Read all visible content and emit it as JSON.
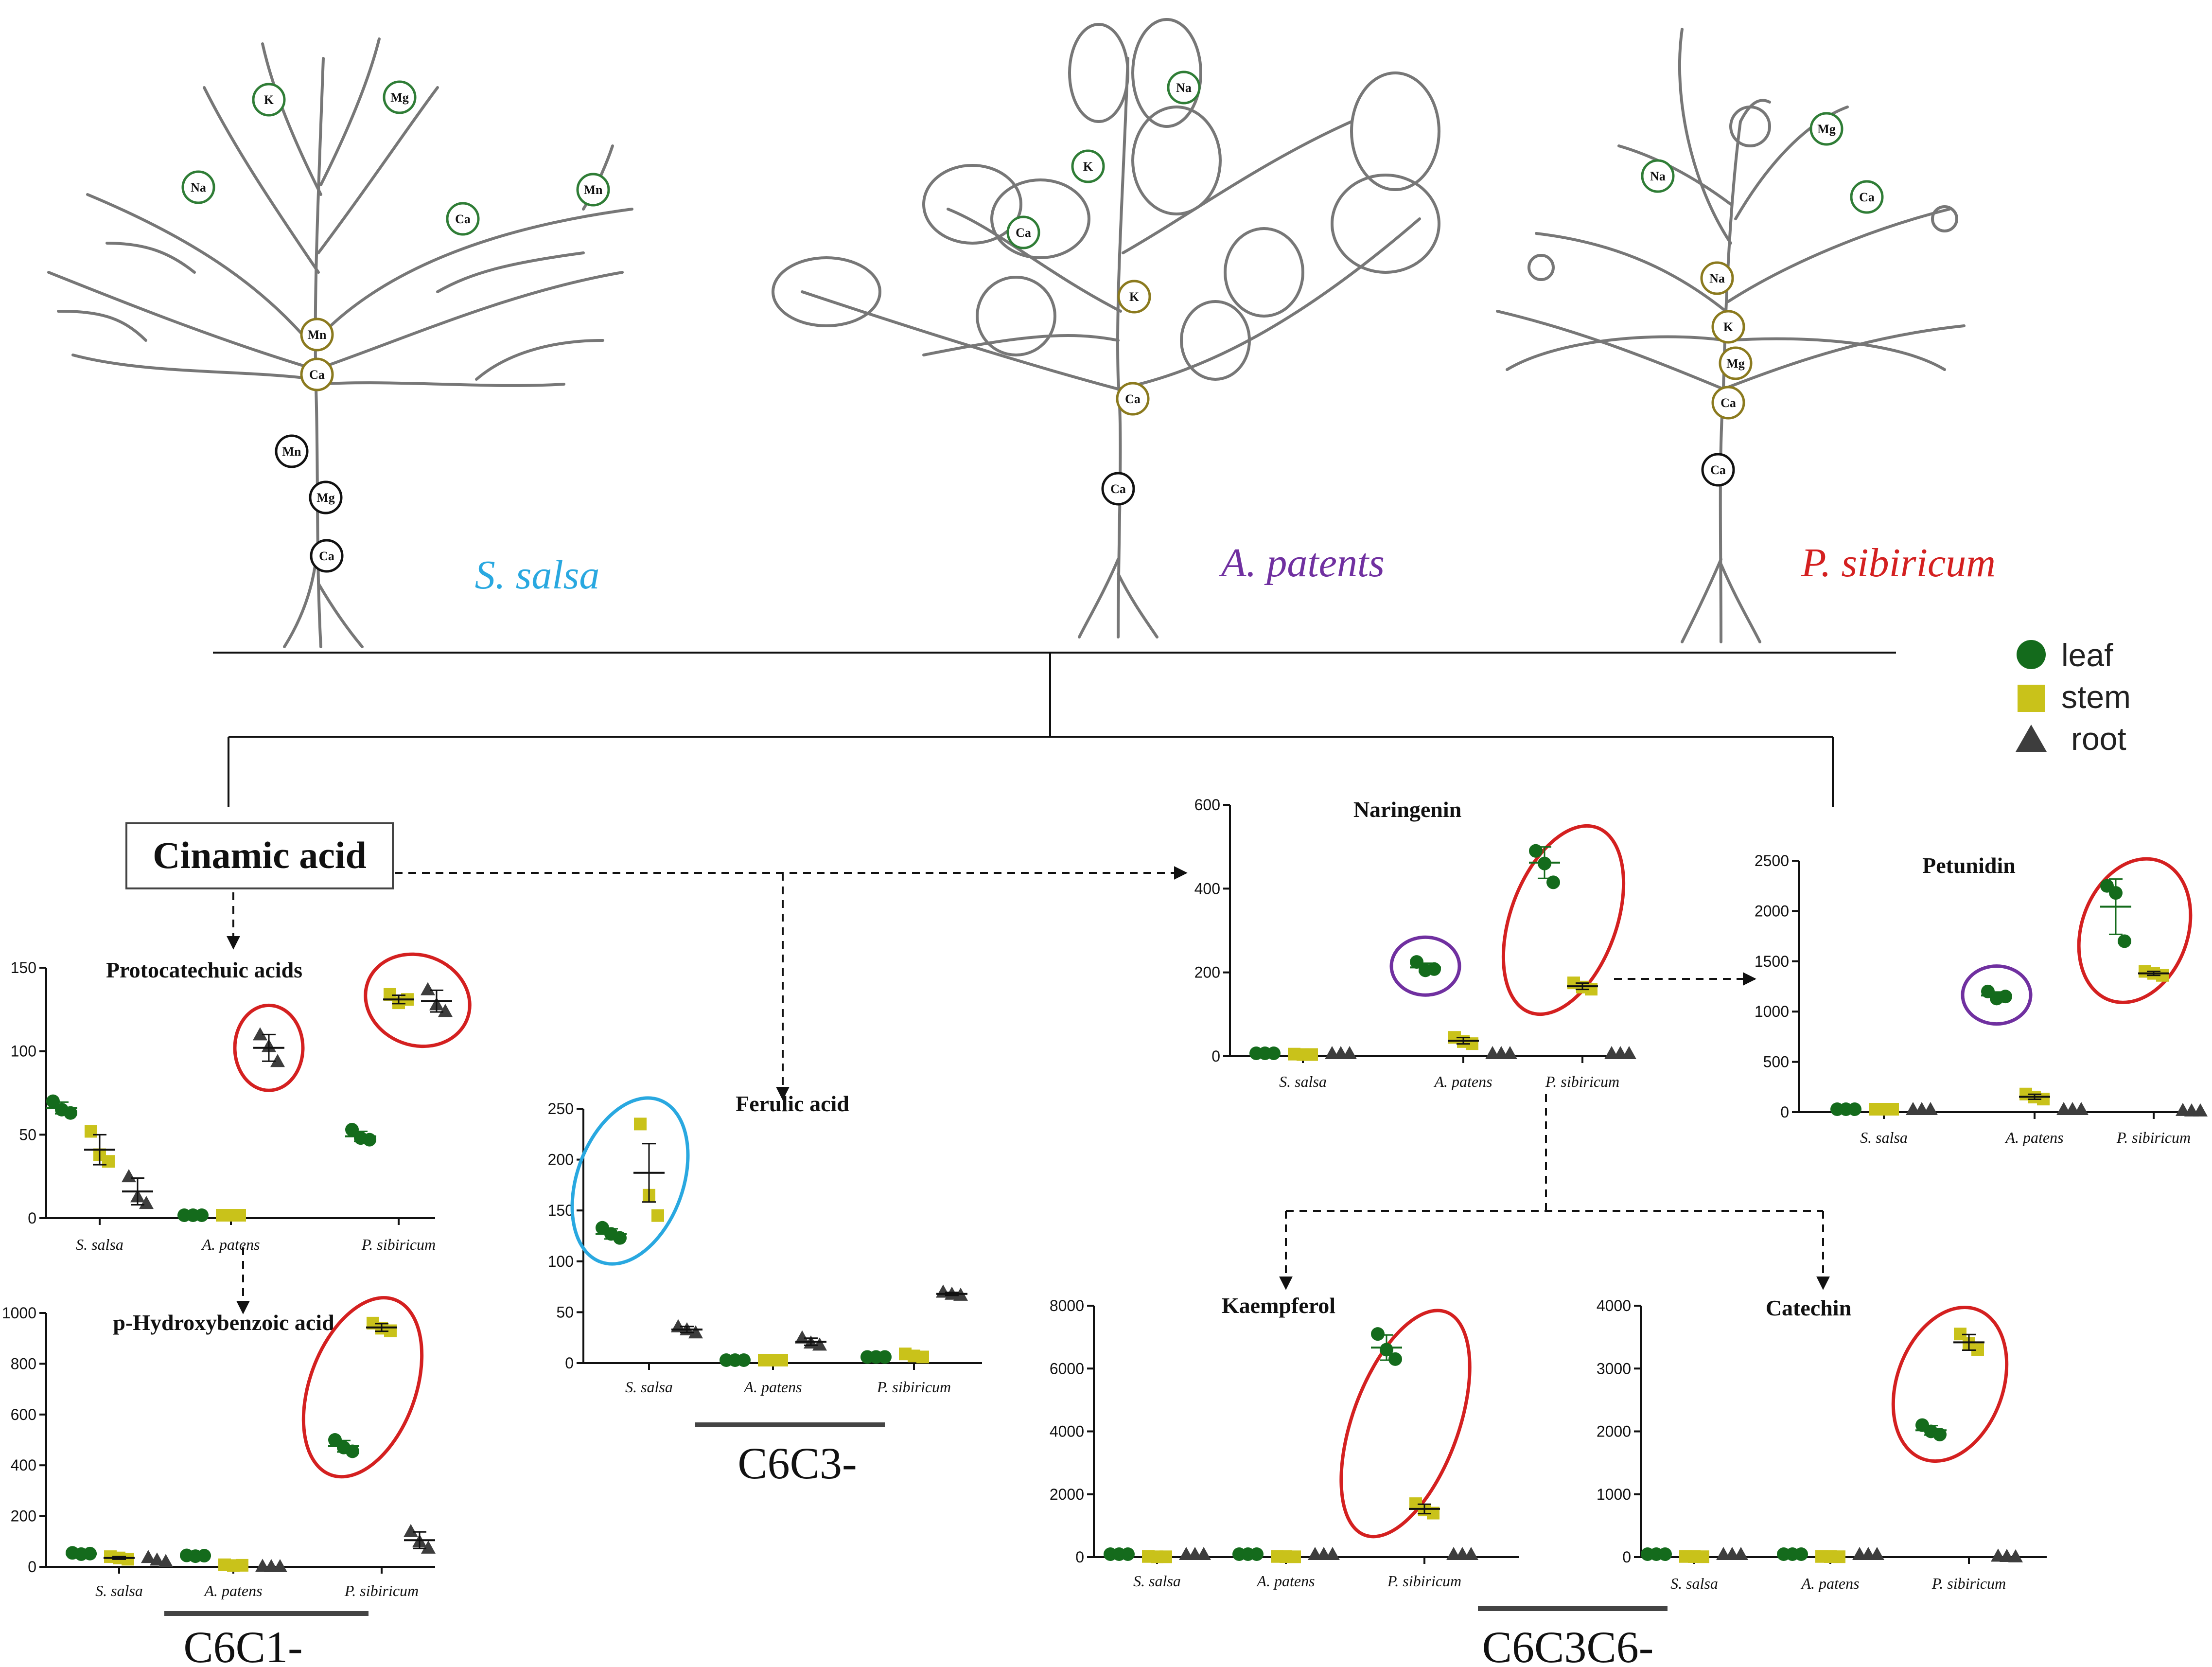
{
  "colors": {
    "leaf": "#146b1c",
    "stem": "#c9c21a",
    "root": "#3d3d3d",
    "ssalsa": "#29a8e0",
    "apatens": "#7030a0",
    "psibiricum": "#d42020"
  },
  "species": [
    {
      "name": "S. salsa",
      "color": "#29a8e0"
    },
    {
      "name": "A. patents",
      "color": "#7030a0"
    },
    {
      "name": "P. sibiricum",
      "color": "#d42020"
    }
  ],
  "plant_labels": [
    [
      "K",
      "Mg",
      "Na",
      "Mn",
      "Ca",
      "Mn",
      "Ca",
      "Mn",
      "Mg",
      "Ca"
    ],
    [
      "Na",
      "K",
      "Ca",
      "K",
      "Ca",
      "Ca"
    ],
    [
      "Na",
      "Mg",
      "Ca",
      "Na",
      "K",
      "Mg",
      "Ca",
      "Ca"
    ]
  ],
  "legend": [
    {
      "label": "leaf",
      "shape": "circle",
      "color": "#146b1c"
    },
    {
      "label": "stem",
      "shape": "square",
      "color": "#c9c21a"
    },
    {
      "label": "root",
      "shape": "triangle",
      "color": "#3d3d3d"
    }
  ],
  "root_compound": "Cinamic acid",
  "groups": [
    "C6C1-",
    "C6C3-",
    "C6C3C6-"
  ],
  "chart_data": [
    {
      "type": "scatter",
      "title": "Protocatechuic acids",
      "categories": [
        "S. salsa",
        "A. patens",
        "P. sibiricum"
      ],
      "ylim": [
        0,
        150
      ],
      "yticks": [
        0,
        50,
        100,
        150
      ],
      "leaf": [
        [
          70,
          65,
          63
        ],
        [
          0,
          0,
          0
        ],
        [
          53,
          48,
          47
        ]
      ],
      "stem": [
        [
          52,
          38,
          34
        ],
        [
          0,
          0,
          0
        ],
        [
          134,
          129,
          131
        ]
      ],
      "root": [
        [
          25,
          13,
          9
        ],
        [
          110,
          103,
          94
        ],
        [
          137,
          128,
          124
        ]
      ],
      "means": {
        "leaf": [
          66,
          0,
          49
        ],
        "stem": [
          41,
          0,
          131
        ],
        "root": [
          16,
          102,
          130
        ]
      },
      "highlight": [
        {
          "cat": 1,
          "series": [
            "root"
          ],
          "color": "#d42020"
        },
        {
          "cat": 2,
          "series": [
            "stem",
            "root"
          ],
          "color": "#d42020"
        }
      ]
    },
    {
      "type": "scatter",
      "title": "p-Hydroxybenzoic acid",
      "categories": [
        "S. salsa",
        "A. patens",
        "P. sibiricum"
      ],
      "ylim": [
        0,
        1000
      ],
      "yticks": [
        0,
        200,
        400,
        600,
        800,
        1000
      ],
      "leaf": [
        [
          55,
          50,
          52
        ],
        [
          45,
          42,
          44
        ],
        [
          500,
          470,
          455
        ]
      ],
      "stem": [
        [
          40,
          35,
          30
        ],
        [
          8,
          5,
          6
        ],
        [
          960,
          940,
          930
        ]
      ],
      "root": [
        [
          38,
          28,
          22
        ],
        [
          3,
          2,
          2
        ],
        [
          140,
          100,
          75
        ]
      ],
      "means": {
        "leaf": [
          52,
          44,
          475
        ],
        "stem": [
          35,
          6,
          943
        ],
        "root": [
          29,
          2,
          105
        ]
      },
      "highlight": [
        {
          "cat": 2,
          "series": [
            "leaf",
            "stem"
          ],
          "color": "#d42020"
        }
      ]
    },
    {
      "type": "scatter",
      "title": "Ferulic acid",
      "categories": [
        "S. salsa",
        "A. patens",
        "P. sibiricum"
      ],
      "ylim": [
        0,
        250
      ],
      "yticks": [
        0,
        50,
        100,
        150,
        200,
        250
      ],
      "leaf": [
        [
          133,
          127,
          123
        ],
        [
          0,
          0,
          0
        ],
        [
          6,
          6,
          6
        ]
      ],
      "stem": [
        [
          235,
          165,
          145
        ],
        [
          0,
          0,
          0
        ],
        [
          9,
          7,
          6
        ]
      ],
      "root": [
        [
          36,
          33,
          30
        ],
        [
          25,
          20,
          18
        ],
        [
          70,
          68,
          67
        ]
      ],
      "means": {
        "leaf": [
          127,
          0,
          6
        ],
        "stem": [
          187,
          0,
          7
        ],
        "root": [
          33,
          21,
          68
        ]
      },
      "highlight": [
        {
          "cat": 0,
          "series": [
            "leaf",
            "stem"
          ],
          "color": "#29a8e0"
        }
      ]
    },
    {
      "type": "scatter",
      "title": "Naringenin",
      "categories": [
        "S. salsa",
        "A. patens",
        "P. sibiricum"
      ],
      "ylim": [
        0,
        600
      ],
      "yticks": [
        0,
        200,
        400,
        600
      ],
      "leaf": [
        [
          0,
          0,
          0
        ],
        [
          225,
          205,
          208
        ],
        [
          490,
          460,
          415
        ]
      ],
      "stem": [
        [
          5,
          4,
          4
        ],
        [
          45,
          35,
          30
        ],
        [
          175,
          165,
          160
        ]
      ],
      "root": [
        [
          0,
          0,
          0
        ],
        [
          0,
          0,
          0
        ],
        [
          0,
          0,
          0
        ]
      ],
      "means": {
        "leaf": [
          0,
          212,
          462
        ],
        "stem": [
          4,
          37,
          167
        ],
        "root": [
          0,
          0,
          0
        ]
      },
      "highlight": [
        {
          "cat": 1,
          "series": [
            "leaf"
          ],
          "color": "#7030a0"
        },
        {
          "cat": 2,
          "series": [
            "leaf",
            "stem"
          ],
          "color": "#d42020"
        }
      ]
    },
    {
      "type": "scatter",
      "title": "Petunidin",
      "categories": [
        "S. salsa",
        "A. patens",
        "P. sibiricum"
      ],
      "ylim": [
        0,
        2500
      ],
      "yticks": [
        0,
        500,
        1000,
        1500,
        2000,
        2500
      ],
      "leaf": [
        [
          0,
          0,
          0
        ],
        [
          1200,
          1130,
          1150
        ],
        [
          2250,
          2180,
          1700
        ]
      ],
      "stem": [
        [
          0,
          0,
          0
        ],
        [
          180,
          150,
          130
        ],
        [
          1400,
          1380,
          1360
        ]
      ],
      "root": [
        [
          0,
          0,
          0
        ],
        [
          0,
          0,
          0
        ],
        [
          20,
          15,
          15
        ]
      ],
      "means": {
        "leaf": [
          0,
          1160,
          2043
        ],
        "stem": [
          0,
          153,
          1380
        ],
        "root": [
          0,
          0,
          17
        ]
      },
      "highlight": [
        {
          "cat": 1,
          "series": [
            "leaf"
          ],
          "color": "#7030a0"
        },
        {
          "cat": 2,
          "series": [
            "leaf",
            "stem"
          ],
          "color": "#d42020"
        }
      ]
    },
    {
      "type": "scatter",
      "title": "Kaempferol",
      "categories": [
        "S. salsa",
        "A. patens",
        "P. sibiricum"
      ],
      "ylim": [
        0,
        8000
      ],
      "yticks": [
        0,
        2000,
        4000,
        6000,
        8000
      ],
      "leaf": [
        [
          0,
          0,
          0
        ],
        [
          0,
          0,
          0
        ],
        [
          7100,
          6600,
          6300
        ]
      ],
      "stem": [
        [
          20,
          10,
          10
        ],
        [
          20,
          15,
          10
        ],
        [
          1700,
          1500,
          1400
        ]
      ],
      "root": [
        [
          0,
          0,
          0
        ],
        [
          0,
          0,
          0
        ],
        [
          0,
          0,
          0
        ]
      ],
      "means": {
        "leaf": [
          0,
          0,
          6667
        ],
        "stem": [
          13,
          15,
          1533
        ],
        "root": [
          0,
          0,
          0
        ]
      },
      "highlight": [
        {
          "cat": 2,
          "series": [
            "leaf",
            "stem"
          ],
          "color": "#d42020"
        }
      ]
    },
    {
      "type": "scatter",
      "title": "Catechin",
      "categories": [
        "S. salsa",
        "A. patens",
        "P. sibiricum"
      ],
      "ylim": [
        0,
        4000
      ],
      "yticks": [
        0,
        1000,
        2000,
        3000,
        4000
      ],
      "leaf": [
        [
          0,
          0,
          0
        ],
        [
          0,
          0,
          0
        ],
        [
          2100,
          2000,
          1950
        ]
      ],
      "stem": [
        [
          10,
          8,
          6
        ],
        [
          10,
          8,
          6
        ],
        [
          3550,
          3400,
          3300
        ]
      ],
      "root": [
        [
          0,
          0,
          0
        ],
        [
          0,
          0,
          0
        ],
        [
          20,
          15,
          10
        ]
      ],
      "means": {
        "leaf": [
          0,
          0,
          2017
        ],
        "stem": [
          8,
          8,
          3417
        ],
        "root": [
          0,
          0,
          15
        ]
      },
      "highlight": [
        {
          "cat": 2,
          "series": [
            "leaf",
            "stem"
          ],
          "color": "#d42020"
        }
      ]
    }
  ]
}
